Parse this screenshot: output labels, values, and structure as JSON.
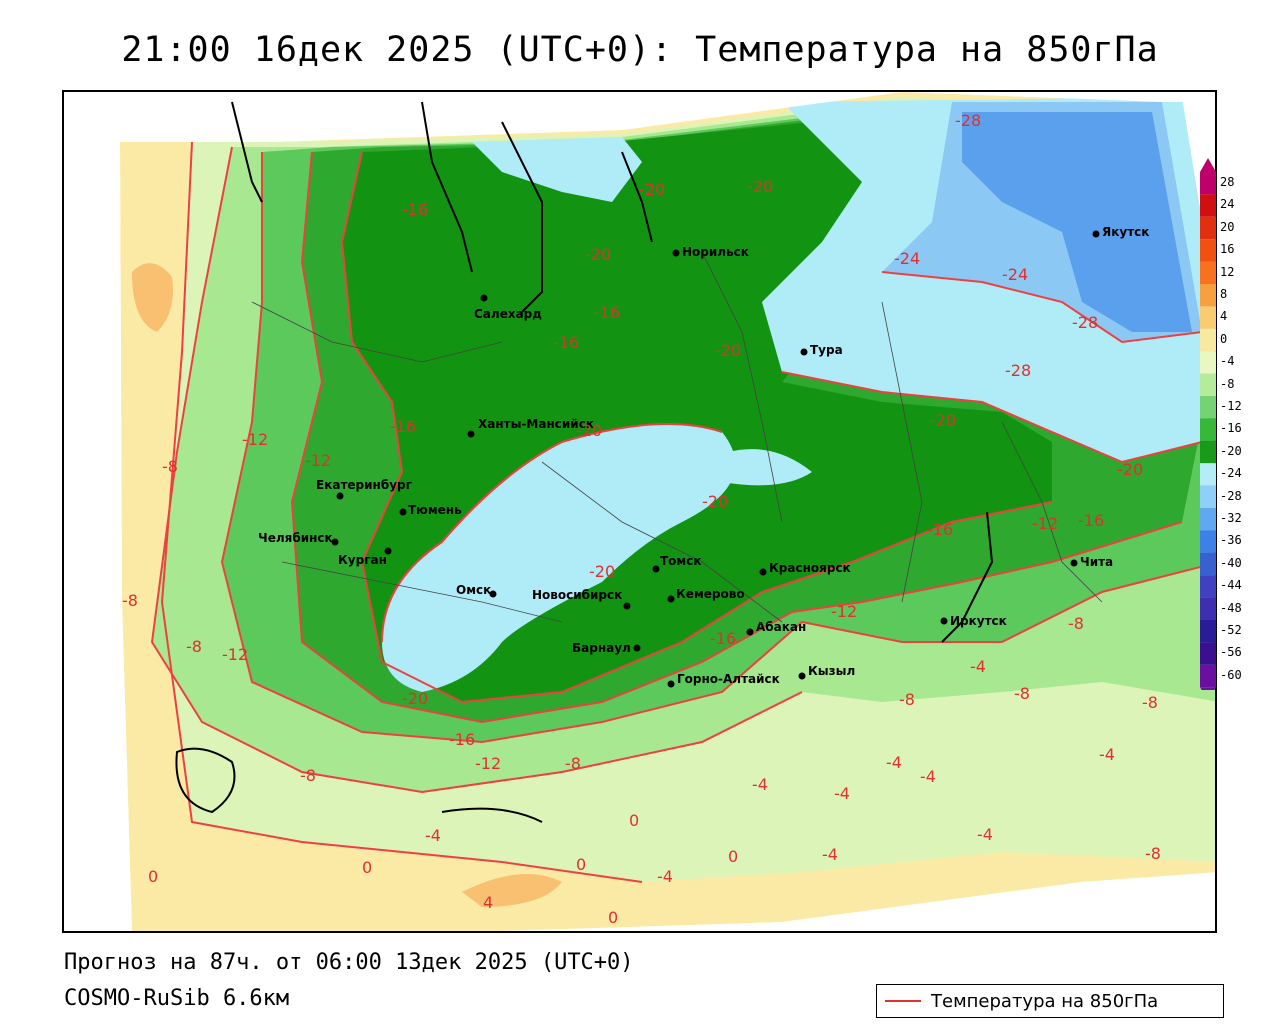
{
  "title": "21:00 16дек 2025 (UTC+0): Температура на 850гПа",
  "forecast_line": "Прогноз на 87ч. от 06:00 13дек 2025 (UTC+0)",
  "model_line": "COSMO-RuSib 6.6км",
  "legend": {
    "label": "Температура на 850гПа",
    "line_color": "#e03030"
  },
  "colorbar": {
    "ticks": [
      "28",
      "24",
      "20",
      "16",
      "12",
      "8",
      "4",
      "0",
      "-4",
      "-8",
      "-12",
      "-16",
      "-20",
      "-24",
      "-28",
      "-32",
      "-36",
      "-40",
      "-44",
      "-48",
      "-52",
      "-56",
      "-60"
    ],
    "colors": [
      "#c0006a",
      "#d01010",
      "#e03010",
      "#f05010",
      "#f87020",
      "#f8a040",
      "#f8cc70",
      "#f8e8a0",
      "#e8f8c0",
      "#b4ec9c",
      "#74d474",
      "#38b838",
      "#1a9a1a",
      "#b4ecf8",
      "#90d0f8",
      "#60a8f0",
      "#3c80e8",
      "#3860d0",
      "#4040c0",
      "#3c30b0",
      "#2a1c98",
      "#3a1090",
      "#6a10a0"
    ]
  },
  "cities": [
    {
      "name": "Норильск"
    },
    {
      "name": "Якутск"
    },
    {
      "name": "Салехард"
    },
    {
      "name": "Тура"
    },
    {
      "name": "Ханты-Мансийск"
    },
    {
      "name": "Екатеринбург"
    },
    {
      "name": "Тюмень"
    },
    {
      "name": "Челябинск"
    },
    {
      "name": "Курган"
    },
    {
      "name": "Омск"
    },
    {
      "name": "Томск"
    },
    {
      "name": "Красноярск"
    },
    {
      "name": "Новосибирск"
    },
    {
      "name": "Кемерово"
    },
    {
      "name": "Барнаул"
    },
    {
      "name": "Абакан"
    },
    {
      "name": "Иркутск"
    },
    {
      "name": "Чита"
    },
    {
      "name": "Кызыл"
    },
    {
      "name": "Горно-Алтайск"
    }
  ],
  "isotherm_labels": [
    "-28",
    "-20",
    "-20",
    "-16",
    "-20",
    "-16",
    "-24",
    "-24",
    "-28",
    "-16",
    "-20",
    "-28",
    "-16",
    "-20",
    "-20",
    "-12",
    "-12",
    "-8",
    "-20",
    "-20",
    "-16",
    "-16",
    "-12",
    "-20",
    "-12",
    "-8",
    "-16",
    "-12",
    "-20",
    "-8",
    "-8",
    "-4",
    "-16",
    "-12",
    "-8",
    "-8",
    "-4",
    "-8",
    "-4",
    "-4",
    "-8",
    "-4",
    "-4",
    "-8",
    "0",
    "0",
    "0",
    "-4",
    "0",
    "-4",
    "4",
    "0",
    "-4",
    "-4",
    "0",
    "-8"
  ]
}
